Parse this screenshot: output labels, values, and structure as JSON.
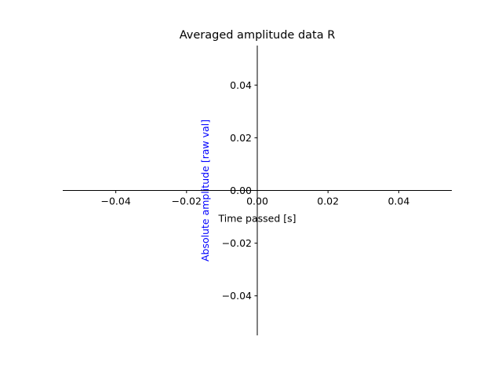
{
  "chart_data": {
    "type": "line",
    "title": "Averaged amplitude data R",
    "xlabel": "Time passed [s]",
    "ylabel": "Absolute amplitude [raw val]",
    "ylabel_color": "#0000ff",
    "axis_color": "#000000",
    "xlim": [
      -0.055,
      0.055
    ],
    "ylim": [
      -0.055,
      0.055
    ],
    "xticks": [
      -0.04,
      -0.02,
      0.0,
      0.02,
      0.04
    ],
    "yticks": [
      -0.04,
      -0.02,
      0.0,
      0.02,
      0.04
    ],
    "xtick_labels": [
      "−0.04",
      "−0.02",
      "0.00",
      "0.02",
      "0.04"
    ],
    "ytick_labels": [
      "−0.04",
      "−0.02",
      "0.00",
      "0.02",
      "0.04"
    ],
    "spines": "centered-at-origin",
    "grid": false,
    "series": []
  }
}
